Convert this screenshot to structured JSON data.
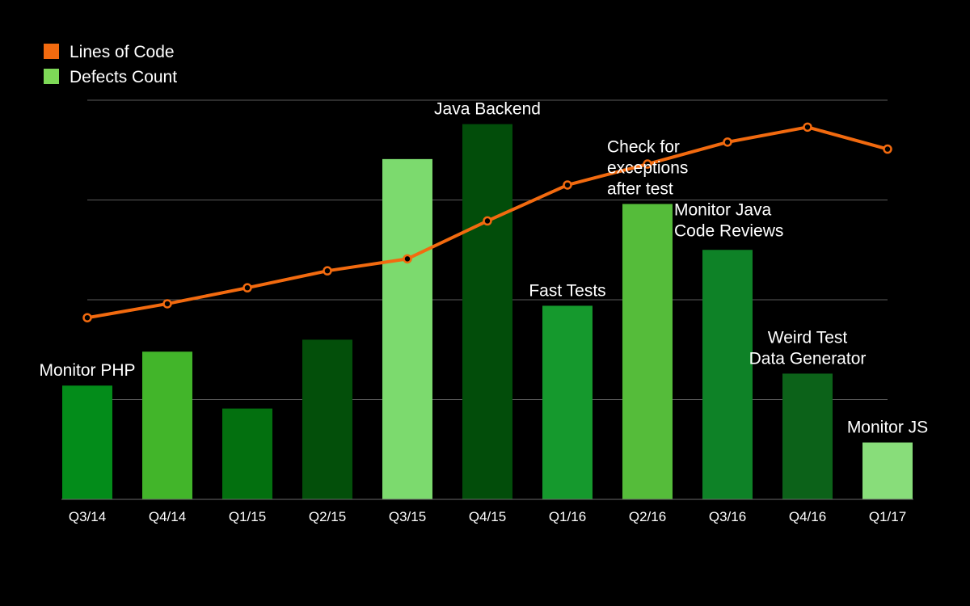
{
  "chart_data": {
    "type": "bar",
    "categories": [
      "Q3/14",
      "Q4/14",
      "Q1/15",
      "Q2/15",
      "Q3/15",
      "Q4/15",
      "Q1/16",
      "Q2/16",
      "Q3/16",
      "Q4/16",
      "Q1/17"
    ],
    "ylim": [
      0,
      4
    ],
    "grid": true,
    "legend_placement": "top-left",
    "series": [
      {
        "name": "Defects Count",
        "kind": "bar",
        "color": "#7ED957",
        "values": [
          1.14,
          1.48,
          0.91,
          1.6,
          3.41,
          3.76,
          1.94,
          2.96,
          2.5,
          1.26,
          0.57
        ],
        "bar_colors": [
          "#038C1A",
          "#42B52A",
          "#03700F",
          "#034F0A",
          "#7CDA6E",
          "#024D0A",
          "#15992D",
          "#55BC3A",
          "#0E8227",
          "#0C6219",
          "#88DD7A"
        ]
      },
      {
        "name": "Lines of Code",
        "kind": "line",
        "color": "#F26A0F",
        "values": [
          1.82,
          1.96,
          2.12,
          2.29,
          2.41,
          2.79,
          3.15,
          3.36,
          3.58,
          3.73,
          3.51
        ]
      }
    ],
    "annotations": [
      {
        "category_index": 0,
        "anchor": "bar",
        "align": "center",
        "lines": [
          "Monitor PHP"
        ]
      },
      {
        "category_index": 5,
        "anchor": "bar",
        "align": "center",
        "lines": [
          "Java Backend"
        ]
      },
      {
        "category_index": 6,
        "anchor": "bar",
        "align": "center",
        "lines": [
          "Fast Tests"
        ]
      },
      {
        "category_index": 7,
        "anchor": "bar",
        "align": "right",
        "lines": [
          "Check for",
          "exceptions",
          "after test"
        ]
      },
      {
        "category_index": 8,
        "anchor": "bar",
        "align": "left",
        "lines": [
          "Monitor Java",
          "Code Reviews"
        ]
      },
      {
        "category_index": 9,
        "anchor": "bar",
        "align": "center",
        "lines": [
          "Weird Test",
          "Data Generator"
        ]
      },
      {
        "category_index": 10,
        "anchor": "bar",
        "align": "center",
        "lines": [
          "Monitor JS"
        ]
      }
    ],
    "legend": [
      {
        "label": "Lines of Code",
        "color": "#F26A0F"
      },
      {
        "label": "Defects Count",
        "color": "#7ED957"
      }
    ]
  }
}
